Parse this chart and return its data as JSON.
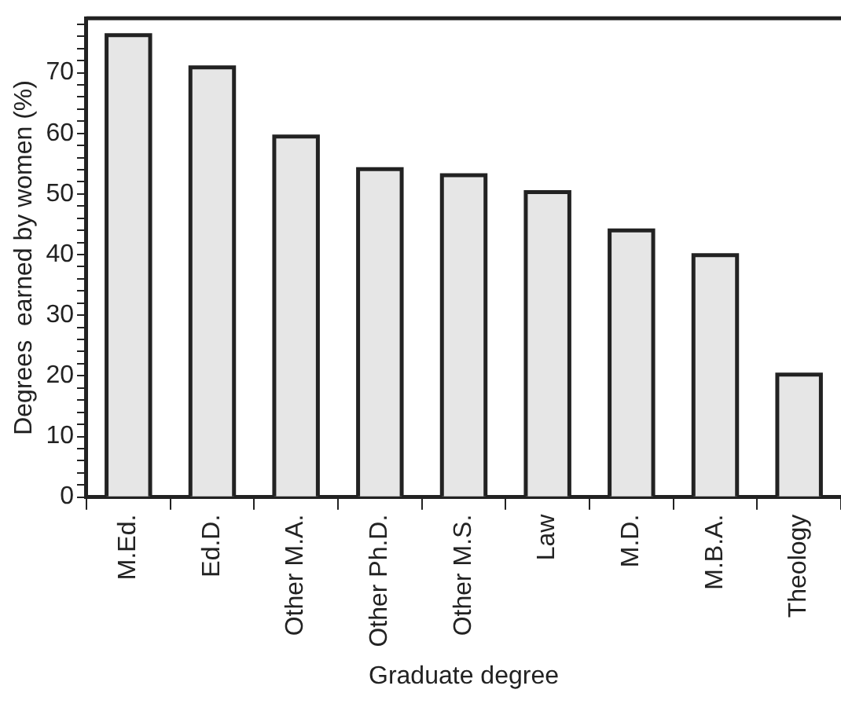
{
  "chart_data": {
    "type": "bar",
    "xlabel": "Graduate degree",
    "ylabel": "Degrees  earned by women (%)",
    "categories": [
      "M.Ed.",
      "Ed.D.",
      "Other M.A.",
      "Other Ph.D.",
      "Other M.S.",
      "Law",
      "M.D.",
      "M.B.A.",
      "Theology"
    ],
    "values": [
      76.2,
      70.9,
      59.5,
      54.1,
      53.1,
      50.3,
      44.0,
      39.9,
      20.2
    ],
    "color": "#e6e6e6",
    "ylim": [
      0,
      79
    ],
    "yticks": [
      0,
      {
        "value": 2,
        "label": null
      },
      {
        "value": 4,
        "label": null
      },
      {
        "value": 6,
        "label": null
      },
      {
        "value": 8,
        "label": null
      },
      10,
      {
        "value": 12,
        "label": null
      },
      {
        "value": 14,
        "label": null
      },
      {
        "value": 16,
        "label": null
      },
      {
        "value": 18,
        "label": null
      },
      20,
      {
        "value": 22,
        "label": null
      },
      {
        "value": 24,
        "label": null
      },
      {
        "value": 26,
        "label": null
      },
      {
        "value": 28,
        "label": null
      },
      30,
      {
        "value": 32,
        "label": null
      },
      {
        "value": 34,
        "label": null
      },
      {
        "value": 36,
        "label": null
      },
      {
        "value": 38,
        "label": null
      },
      40,
      {
        "value": 42,
        "label": null
      },
      {
        "value": 44,
        "label": null
      },
      {
        "value": 46,
        "label": null
      },
      {
        "value": 48,
        "label": null
      },
      50,
      {
        "value": 52,
        "label": null
      },
      {
        "value": 54,
        "label": null
      },
      {
        "value": 56,
        "label": null
      },
      {
        "value": 58,
        "label": null
      },
      60,
      {
        "value": 62,
        "label": null
      },
      {
        "value": 64,
        "label": null
      },
      {
        "value": 66,
        "label": null
      },
      {
        "value": 68,
        "label": null
      },
      70,
      {
        "value": 72,
        "label": null
      },
      {
        "value": 74,
        "label": null
      },
      {
        "value": 76,
        "label": null
      },
      {
        "value": 78,
        "label": null
      }
    ],
    "grid": false,
    "legend": false
  }
}
